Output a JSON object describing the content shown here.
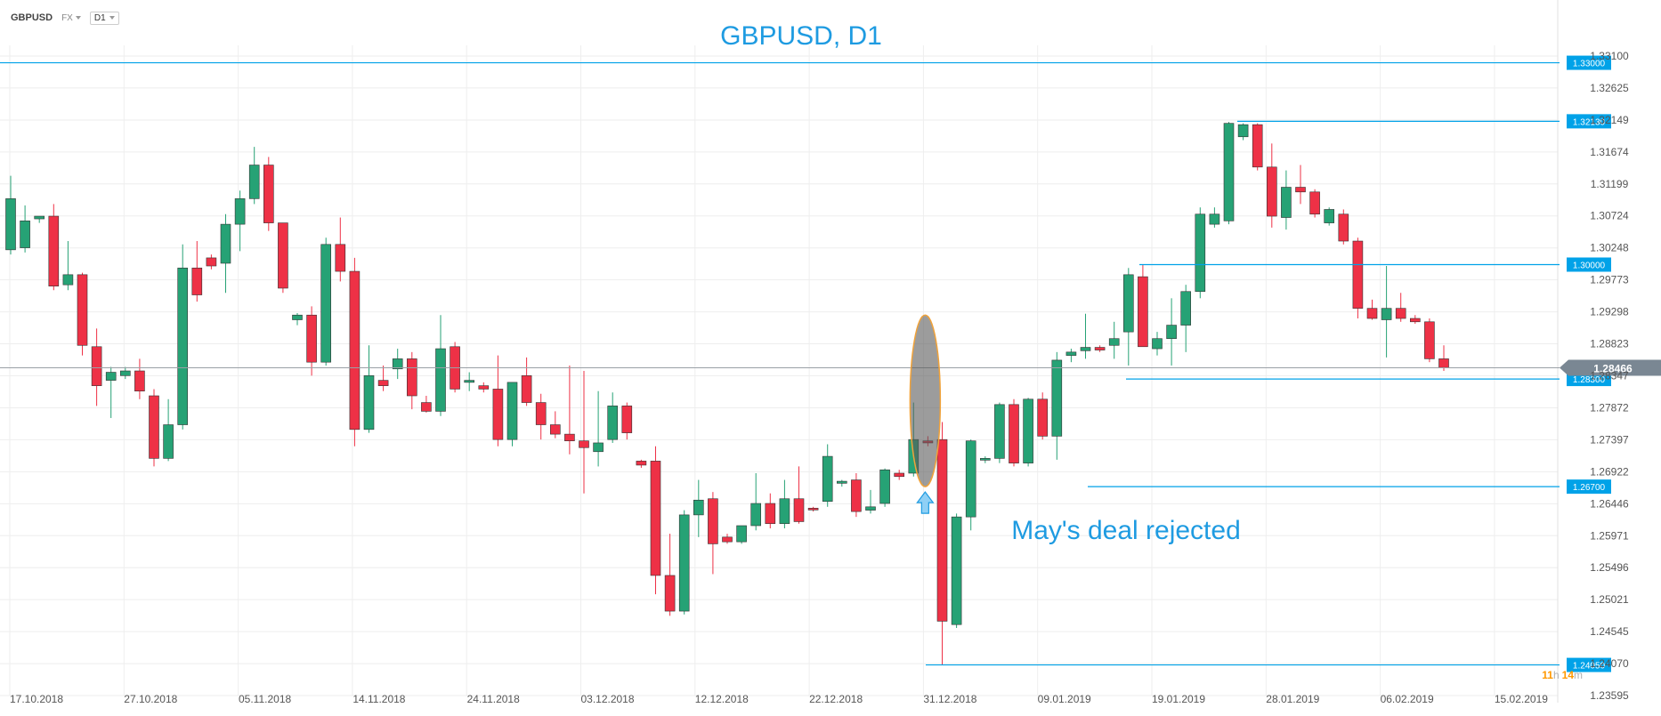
{
  "header": {
    "symbol": "GBPUSD",
    "market": "FX",
    "timeframe": "D1"
  },
  "countdown": {
    "hours": "11",
    "h_label": "h",
    "minutes": "14",
    "m_label": "m"
  },
  "colors": {
    "bull": "#26a275",
    "bear": "#ee3146",
    "level": "#00a2e8",
    "title": "#1e9be1",
    "grid": "#eeeeee",
    "axis_text": "#555555",
    "current": "#7a8793",
    "countdown": "#ff9800"
  },
  "chart_data": {
    "type": "candlestick",
    "title": "GBPUSD, D1",
    "y_ticks": [
      "1.33100",
      "1.32625",
      "1.32149",
      "1.31674",
      "1.31199",
      "1.30724",
      "1.30248",
      "1.29773",
      "1.29298",
      "1.28823",
      "1.28347",
      "1.27872",
      "1.27397",
      "1.26922",
      "1.26446",
      "1.25971",
      "1.25496",
      "1.25021",
      "1.24545",
      "1.24070",
      "1.23595"
    ],
    "ylim": [
      1.23595,
      1.331
    ],
    "x_ticks": [
      "17.10.2018",
      "27.10.2018",
      "05.11.2018",
      "14.11.2018",
      "24.11.2018",
      "03.12.2018",
      "12.12.2018",
      "22.12.2018",
      "31.12.2018",
      "09.01.2019",
      "19.01.2019",
      "28.01.2019",
      "06.02.2019",
      "15.02.2019"
    ],
    "current_price": "1.28466",
    "levels": [
      {
        "value": 1.33,
        "label": "1.33000"
      },
      {
        "value": 1.3213,
        "label": "1.32130"
      },
      {
        "value": 1.3,
        "label": "1.30000"
      },
      {
        "value": 1.283,
        "label": "1.28300"
      },
      {
        "value": 1.267,
        "label": "1.26700"
      },
      {
        "value": 1.2405,
        "label": "1.24050"
      }
    ],
    "annotation": "May's deal rejected",
    "candles": [
      {
        "o": 1.3022,
        "h": 1.3132,
        "l": 1.3015,
        "c": 1.3098
      },
      {
        "o": 1.3025,
        "h": 1.3088,
        "l": 1.3018,
        "c": 1.3065
      },
      {
        "o": 1.3068,
        "h": 1.3072,
        "l": 1.3062,
        "c": 1.3072
      },
      {
        "o": 1.3072,
        "h": 1.309,
        "l": 1.2962,
        "c": 1.2968
      },
      {
        "o": 1.297,
        "h": 1.3035,
        "l": 1.2962,
        "c": 1.2985
      },
      {
        "o": 1.2985,
        "h": 1.2988,
        "l": 1.2865,
        "c": 1.288
      },
      {
        "o": 1.2878,
        "h": 1.2905,
        "l": 1.279,
        "c": 1.282
      },
      {
        "o": 1.2828,
        "h": 1.2848,
        "l": 1.2772,
        "c": 1.284
      },
      {
        "o": 1.2835,
        "h": 1.2848,
        "l": 1.283,
        "c": 1.2842
      },
      {
        "o": 1.2842,
        "h": 1.286,
        "l": 1.28,
        "c": 1.2812
      },
      {
        "o": 1.2805,
        "h": 1.2815,
        "l": 1.27,
        "c": 1.2712
      },
      {
        "o": 1.2712,
        "h": 1.28,
        "l": 1.2708,
        "c": 1.2762
      },
      {
        "o": 1.2762,
        "h": 1.303,
        "l": 1.2755,
        "c": 1.2995
      },
      {
        "o": 1.2995,
        "h": 1.3035,
        "l": 1.2945,
        "c": 1.2955
      },
      {
        "o": 1.301,
        "h": 1.3015,
        "l": 1.2993,
        "c": 1.2998
      },
      {
        "o": 1.3002,
        "h": 1.3075,
        "l": 1.2958,
        "c": 1.306
      },
      {
        "o": 1.306,
        "h": 1.311,
        "l": 1.302,
        "c": 1.3098
      },
      {
        "o": 1.3098,
        "h": 1.3175,
        "l": 1.309,
        "c": 1.3148
      },
      {
        "o": 1.3148,
        "h": 1.316,
        "l": 1.305,
        "c": 1.3062
      },
      {
        "o": 1.3062,
        "h": 1.3062,
        "l": 1.2958,
        "c": 1.2965
      },
      {
        "o": 1.2918,
        "h": 1.2928,
        "l": 1.291,
        "c": 1.2925
      },
      {
        "o": 1.2925,
        "h": 1.2938,
        "l": 1.2835,
        "c": 1.2855
      },
      {
        "o": 1.2855,
        "h": 1.304,
        "l": 1.285,
        "c": 1.303
      },
      {
        "o": 1.303,
        "h": 1.307,
        "l": 1.2975,
        "c": 1.299
      },
      {
        "o": 1.299,
        "h": 1.301,
        "l": 1.273,
        "c": 1.2755
      },
      {
        "o": 1.2755,
        "h": 1.288,
        "l": 1.275,
        "c": 1.2835
      },
      {
        "o": 1.2828,
        "h": 1.285,
        "l": 1.2812,
        "c": 1.282
      },
      {
        "o": 1.2845,
        "h": 1.2875,
        "l": 1.283,
        "c": 1.286
      },
      {
        "o": 1.286,
        "h": 1.287,
        "l": 1.2785,
        "c": 1.2805
      },
      {
        "o": 1.2795,
        "h": 1.2805,
        "l": 1.278,
        "c": 1.2782
      },
      {
        "o": 1.2782,
        "h": 1.2925,
        "l": 1.2775,
        "c": 1.2875
      },
      {
        "o": 1.2878,
        "h": 1.2885,
        "l": 1.281,
        "c": 1.2815
      },
      {
        "o": 1.2825,
        "h": 1.284,
        "l": 1.2812,
        "c": 1.2828
      },
      {
        "o": 1.282,
        "h": 1.2825,
        "l": 1.281,
        "c": 1.2815
      },
      {
        "o": 1.2815,
        "h": 1.2865,
        "l": 1.273,
        "c": 1.274
      },
      {
        "o": 1.274,
        "h": 1.282,
        "l": 1.273,
        "c": 1.2825
      },
      {
        "o": 1.2835,
        "h": 1.2862,
        "l": 1.279,
        "c": 1.2795
      },
      {
        "o": 1.2795,
        "h": 1.2808,
        "l": 1.274,
        "c": 1.2762
      },
      {
        "o": 1.2762,
        "h": 1.2782,
        "l": 1.2742,
        "c": 1.2748
      },
      {
        "o": 1.2748,
        "h": 1.285,
        "l": 1.2718,
        "c": 1.2738
      },
      {
        "o": 1.2738,
        "h": 1.2842,
        "l": 1.266,
        "c": 1.2728
      },
      {
        "o": 1.2722,
        "h": 1.2812,
        "l": 1.27,
        "c": 1.2735
      },
      {
        "o": 1.274,
        "h": 1.281,
        "l": 1.2735,
        "c": 1.279
      },
      {
        "o": 1.279,
        "h": 1.2795,
        "l": 1.274,
        "c": 1.275
      },
      {
        "o": 1.2708,
        "h": 1.271,
        "l": 1.2698,
        "c": 1.2702
      },
      {
        "o": 1.2708,
        "h": 1.273,
        "l": 1.251,
        "c": 1.2538
      },
      {
        "o": 1.2538,
        "h": 1.26,
        "l": 1.2478,
        "c": 1.2485
      },
      {
        "o": 1.2485,
        "h": 1.2635,
        "l": 1.248,
        "c": 1.2628
      },
      {
        "o": 1.2628,
        "h": 1.268,
        "l": 1.2595,
        "c": 1.265
      },
      {
        "o": 1.2652,
        "h": 1.2662,
        "l": 1.254,
        "c": 1.2585
      },
      {
        "o": 1.2595,
        "h": 1.26,
        "l": 1.2585,
        "c": 1.2588
      },
      {
        "o": 1.2588,
        "h": 1.2612,
        "l": 1.2585,
        "c": 1.2612
      },
      {
        "o": 1.2612,
        "h": 1.269,
        "l": 1.2605,
        "c": 1.2645
      },
      {
        "o": 1.2645,
        "h": 1.266,
        "l": 1.2608,
        "c": 1.2615
      },
      {
        "o": 1.2615,
        "h": 1.268,
        "l": 1.2608,
        "c": 1.2652
      },
      {
        "o": 1.2652,
        "h": 1.27,
        "l": 1.2615,
        "c": 1.2618
      },
      {
        "o": 1.2638,
        "h": 1.264,
        "l": 1.2633,
        "c": 1.2636
      },
      {
        "o": 1.2648,
        "h": 1.2733,
        "l": 1.264,
        "c": 1.2715
      },
      {
        "o": 1.2675,
        "h": 1.268,
        "l": 1.267,
        "c": 1.2678
      },
      {
        "o": 1.268,
        "h": 1.269,
        "l": 1.2625,
        "c": 1.2633
      },
      {
        "o": 1.2635,
        "h": 1.2665,
        "l": 1.263,
        "c": 1.264
      },
      {
        "o": 1.2645,
        "h": 1.2697,
        "l": 1.264,
        "c": 1.2695
      },
      {
        "o": 1.269,
        "h": 1.2695,
        "l": 1.268,
        "c": 1.2685
      },
      {
        "o": 1.269,
        "h": 1.2795,
        "l": 1.2685,
        "c": 1.274
      },
      {
        "o": 1.2738,
        "h": 1.2745,
        "l": 1.273,
        "c": 1.2735
      },
      {
        "o": 1.274,
        "h": 1.2766,
        "l": 1.2405,
        "c": 1.247
      },
      {
        "o": 1.2465,
        "h": 1.263,
        "l": 1.246,
        "c": 1.2625
      },
      {
        "o": 1.2625,
        "h": 1.274,
        "l": 1.2605,
        "c": 1.2738
      },
      {
        "o": 1.271,
        "h": 1.2715,
        "l": 1.2705,
        "c": 1.2712
      },
      {
        "o": 1.2712,
        "h": 1.2795,
        "l": 1.2705,
        "c": 1.2792
      },
      {
        "o": 1.2792,
        "h": 1.28,
        "l": 1.27,
        "c": 1.2705
      },
      {
        "o": 1.2705,
        "h": 1.2802,
        "l": 1.27,
        "c": 1.28
      },
      {
        "o": 1.28,
        "h": 1.281,
        "l": 1.274,
        "c": 1.2745
      },
      {
        "o": 1.2745,
        "h": 1.287,
        "l": 1.271,
        "c": 1.2858
      },
      {
        "o": 1.2865,
        "h": 1.2875,
        "l": 1.2855,
        "c": 1.287
      },
      {
        "o": 1.2872,
        "h": 1.2927,
        "l": 1.286,
        "c": 1.2877
      },
      {
        "o": 1.2877,
        "h": 1.288,
        "l": 1.287,
        "c": 1.2873
      },
      {
        "o": 1.288,
        "h": 1.2915,
        "l": 1.286,
        "c": 1.289
      },
      {
        "o": 1.29,
        "h": 1.2995,
        "l": 1.285,
        "c": 1.2985
      },
      {
        "o": 1.2982,
        "h": 1.3,
        "l": 1.2878,
        "c": 1.2878
      },
      {
        "o": 1.2875,
        "h": 1.29,
        "l": 1.2865,
        "c": 1.289
      },
      {
        "o": 1.289,
        "h": 1.295,
        "l": 1.285,
        "c": 1.291
      },
      {
        "o": 1.291,
        "h": 1.297,
        "l": 1.287,
        "c": 1.296
      },
      {
        "o": 1.296,
        "h": 1.3085,
        "l": 1.295,
        "c": 1.3075
      },
      {
        "o": 1.306,
        "h": 1.3085,
        "l": 1.3055,
        "c": 1.3075
      },
      {
        "o": 1.3065,
        "h": 1.3212,
        "l": 1.306,
        "c": 1.321
      },
      {
        "o": 1.319,
        "h": 1.321,
        "l": 1.3185,
        "c": 1.3208
      },
      {
        "o": 1.3208,
        "h": 1.321,
        "l": 1.314,
        "c": 1.3145
      },
      {
        "o": 1.3145,
        "h": 1.318,
        "l": 1.3055,
        "c": 1.3072
      },
      {
        "o": 1.307,
        "h": 1.314,
        "l": 1.3052,
        "c": 1.3115
      },
      {
        "o": 1.3115,
        "h": 1.3148,
        "l": 1.309,
        "c": 1.3108
      },
      {
        "o": 1.3108,
        "h": 1.3112,
        "l": 1.307,
        "c": 1.3075
      },
      {
        "o": 1.3062,
        "h": 1.3085,
        "l": 1.3058,
        "c": 1.3082
      },
      {
        "o": 1.3075,
        "h": 1.3082,
        "l": 1.303,
        "c": 1.3035
      },
      {
        "o": 1.3035,
        "h": 1.304,
        "l": 1.292,
        "c": 1.2935
      },
      {
        "o": 1.2935,
        "h": 1.2948,
        "l": 1.2918,
        "c": 1.292
      },
      {
        "o": 1.2918,
        "h": 1.2998,
        "l": 1.2862,
        "c": 1.2935
      },
      {
        "o": 1.2935,
        "h": 1.2958,
        "l": 1.2915,
        "c": 1.292
      },
      {
        "o": 1.292,
        "h": 1.2925,
        "l": 1.2912,
        "c": 1.2915
      },
      {
        "o": 1.2915,
        "h": 1.292,
        "l": 1.2855,
        "c": 1.286
      },
      {
        "o": 1.286,
        "h": 1.288,
        "l": 1.2842,
        "c": 1.2847
      }
    ]
  }
}
